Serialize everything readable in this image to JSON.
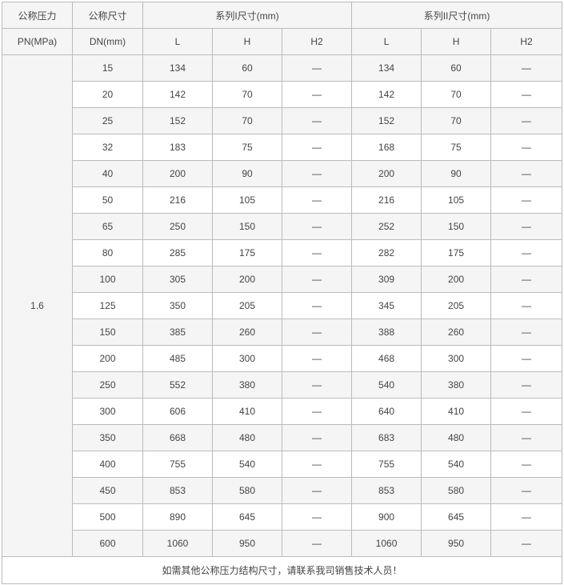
{
  "header": {
    "pn_label_1": "公称压力",
    "pn_label_2": "PN(MPa)",
    "dn_label_1": "公称尺寸",
    "dn_label_2": "DN(mm)",
    "series1": "系列I尺寸(mm)",
    "series2": "系列II尺寸(mm)",
    "sub": [
      "L",
      "H",
      "H2",
      "L",
      "H",
      "H2"
    ]
  },
  "pn_value": "1.6",
  "rows": [
    [
      "15",
      "134",
      "60",
      "—",
      "134",
      "60",
      "—"
    ],
    [
      "20",
      "142",
      "70",
      "—",
      "142",
      "70",
      "—"
    ],
    [
      "25",
      "152",
      "70",
      "—",
      "152",
      "70",
      "—"
    ],
    [
      "32",
      "183",
      "75",
      "—",
      "168",
      "75",
      "—"
    ],
    [
      "40",
      "200",
      "90",
      "—",
      "200",
      "90",
      "—"
    ],
    [
      "50",
      "216",
      "105",
      "—",
      "216",
      "105",
      "—"
    ],
    [
      "65",
      "250",
      "150",
      "—",
      "252",
      "150",
      "—"
    ],
    [
      "80",
      "285",
      "175",
      "—",
      "282",
      "175",
      "—"
    ],
    [
      "100",
      "305",
      "200",
      "—",
      "309",
      "200",
      "—"
    ],
    [
      "125",
      "350",
      "205",
      "—",
      "345",
      "205",
      "—"
    ],
    [
      "150",
      "385",
      "260",
      "—",
      "388",
      "260",
      "—"
    ],
    [
      "200",
      "485",
      "300",
      "—",
      "468",
      "300",
      "—"
    ],
    [
      "250",
      "552",
      "380",
      "—",
      "540",
      "380",
      "—"
    ],
    [
      "300",
      "606",
      "410",
      "—",
      "640",
      "410",
      "—"
    ],
    [
      "350",
      "668",
      "480",
      "—",
      "683",
      "480",
      "—"
    ],
    [
      "400",
      "755",
      "540",
      "—",
      "755",
      "540",
      "—"
    ],
    [
      "450",
      "853",
      "580",
      "—",
      "853",
      "580",
      "—"
    ],
    [
      "500",
      "890",
      "645",
      "—",
      "900",
      "645",
      "—"
    ],
    [
      "600",
      "1060",
      "950",
      "—",
      "1060",
      "950",
      "—"
    ]
  ],
  "footer": "如需其他公称压力结构尺寸，请联系我司销售技术人员！"
}
